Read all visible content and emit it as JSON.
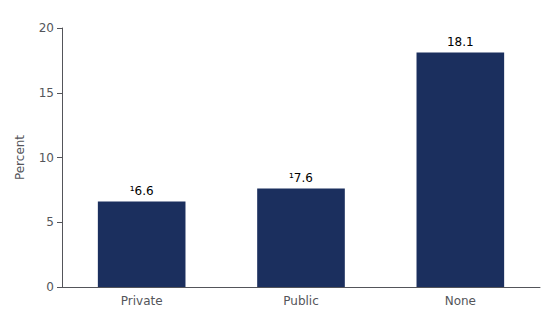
{
  "chart_data": {
    "type": "bar",
    "categories": [
      "Private",
      "Public",
      "None"
    ],
    "values": [
      6.6,
      7.6,
      18.1
    ],
    "value_labels": [
      "¹6.6",
      "¹7.6",
      "18.1"
    ],
    "data_labels": true,
    "color": "#1b2f5e",
    "ylabel": "Percent",
    "ylim": [
      0,
      20
    ],
    "yticks": [
      0,
      5,
      10,
      15,
      20
    ],
    "grid": false
  }
}
